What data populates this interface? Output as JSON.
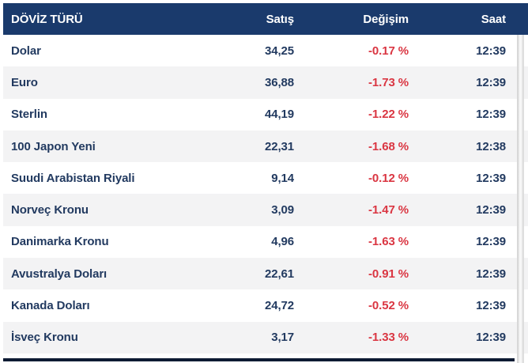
{
  "header": {
    "currency": "DÖVİZ TÜRÜ",
    "sell": "Satış",
    "change": "Değişim",
    "time": "Saat"
  },
  "rows": [
    {
      "name": "Dolar",
      "sell": "34,25",
      "change": "-0.17 %",
      "time": "12:39"
    },
    {
      "name": "Euro",
      "sell": "36,88",
      "change": "-1.73 %",
      "time": "12:39"
    },
    {
      "name": "Sterlin",
      "sell": "44,19",
      "change": "-1.22 %",
      "time": "12:39"
    },
    {
      "name": "100 Japon Yeni",
      "sell": "22,31",
      "change": "-1.68 %",
      "time": "12:38"
    },
    {
      "name": "Suudi Arabistan Riyali",
      "sell": "9,14",
      "change": "-0.12 %",
      "time": "12:39"
    },
    {
      "name": "Norveç Kronu",
      "sell": "3,09",
      "change": "-1.47 %",
      "time": "12:39"
    },
    {
      "name": "Danimarka Kronu",
      "sell": "4,96",
      "change": "-1.63 %",
      "time": "12:39"
    },
    {
      "name": "Avustralya Doları",
      "sell": "22,61",
      "change": "-0.91 %",
      "time": "12:39"
    },
    {
      "name": "Kanada Doları",
      "sell": "24,72",
      "change": "-0.52 %",
      "time": "12:39"
    },
    {
      "name": "İsveç Kronu",
      "sell": "3,17",
      "change": "-1.33 %",
      "time": "12:39"
    }
  ],
  "colors": {
    "header_bg": "#1a3a6c",
    "row_text": "#223a60",
    "negative": "#da3642",
    "row_alt_bg": "#f3f3f4",
    "bottom_bar": "#0d1b33"
  }
}
